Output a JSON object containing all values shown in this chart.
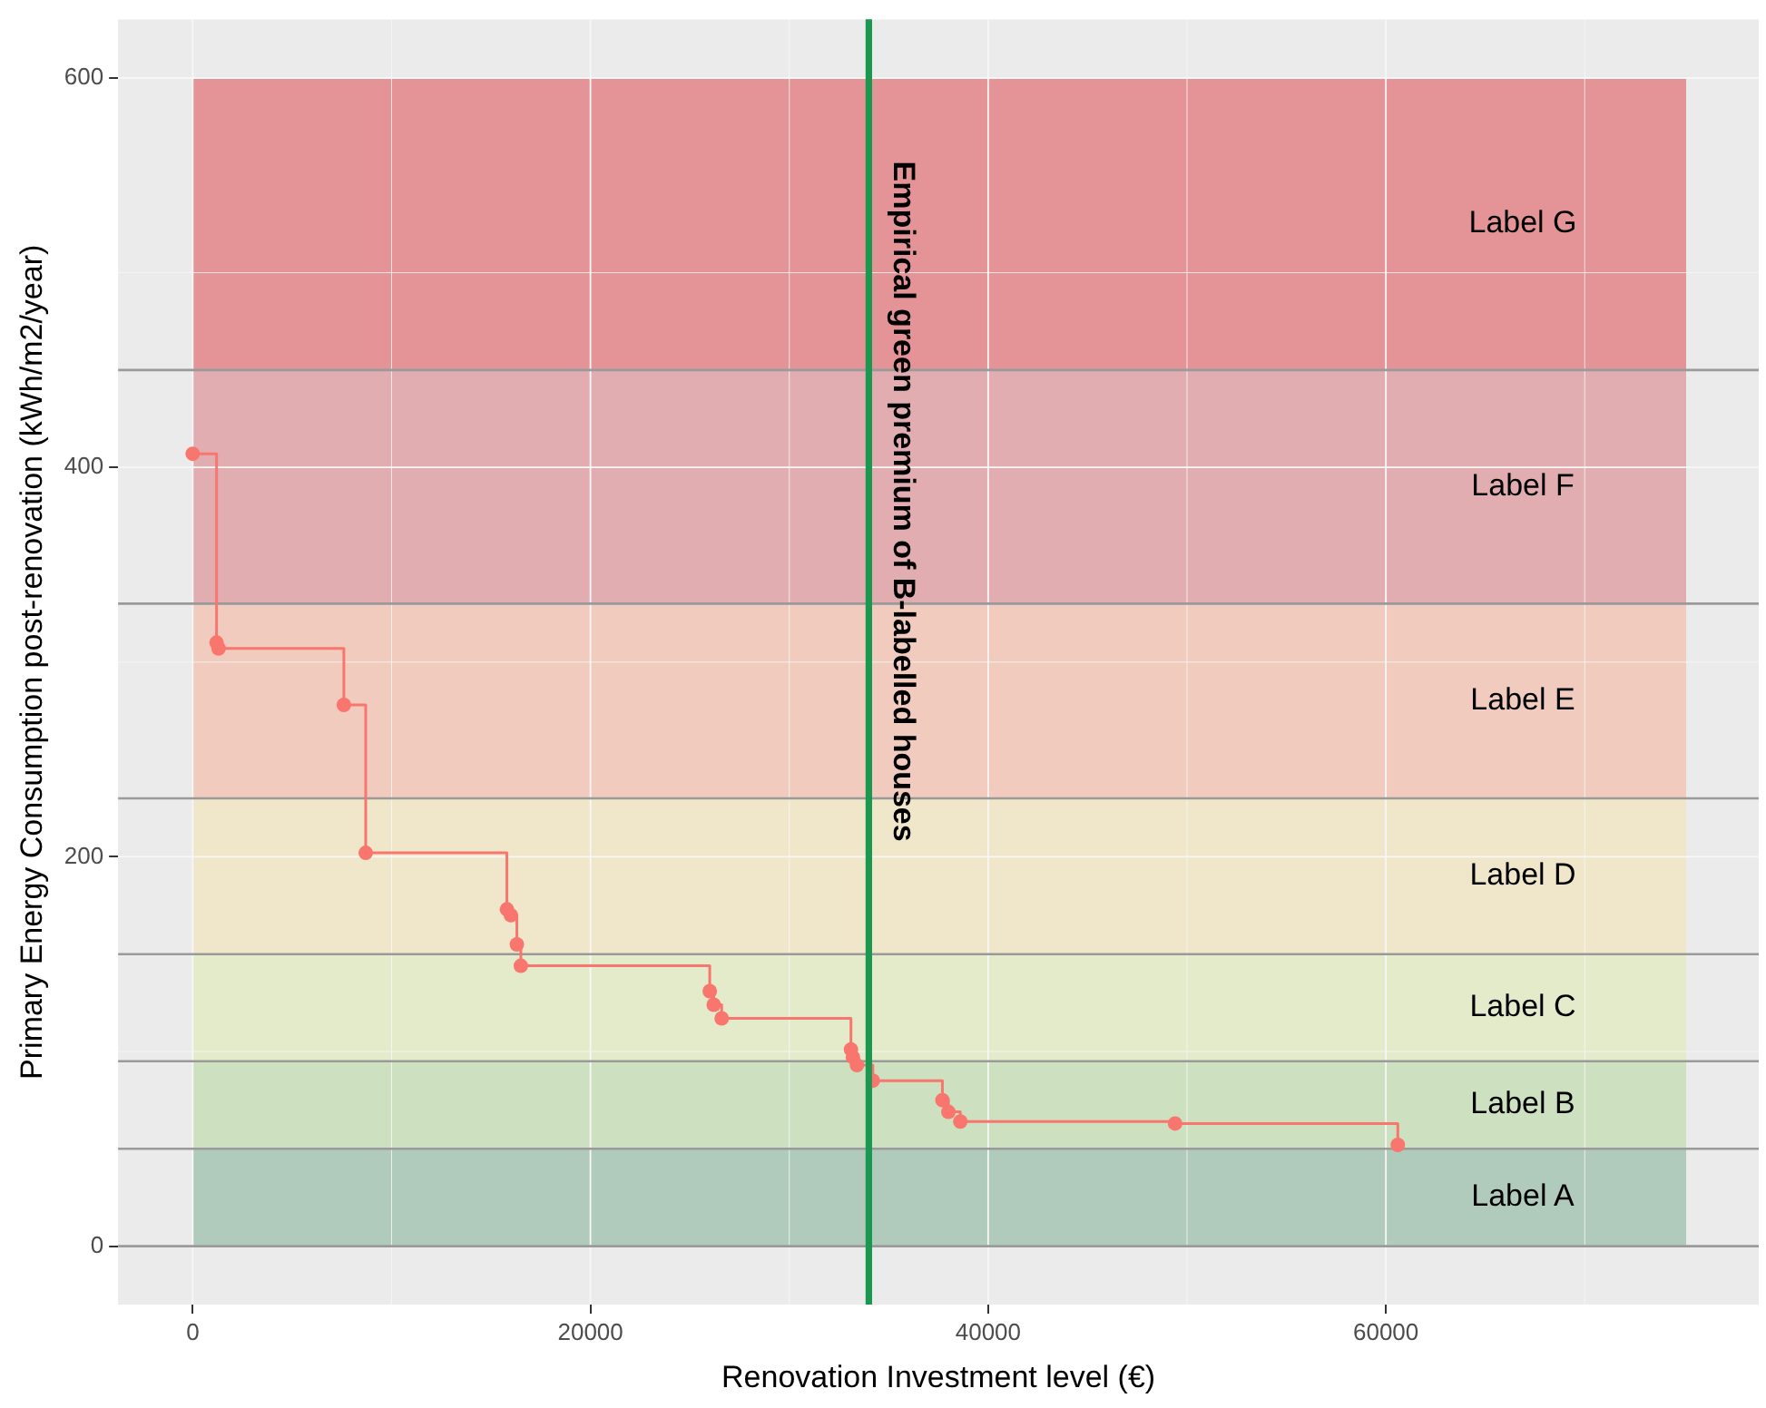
{
  "chart_data": {
    "type": "step",
    "xlabel": "Renovation Investment level (€)",
    "ylabel": "Primary Energy Consumption post-renovation (kWh/m2/year)",
    "xlim": [
      -3750,
      78750
    ],
    "ylim": [
      -30,
      630
    ],
    "xticks": [
      0,
      20000,
      40000,
      60000
    ],
    "yticks": [
      0,
      200,
      400,
      600
    ],
    "grid": true,
    "legend": false,
    "marker": "circle",
    "series": [
      {
        "type": "step",
        "color": "#f8766d",
        "x": [
          0,
          1200,
          1300,
          7600,
          8700,
          15800,
          16000,
          16300,
          16500,
          26000,
          26200,
          26600,
          33100,
          33200,
          33400,
          34200,
          37700,
          38000,
          38600,
          49400,
          60600
        ],
        "values": [
          407,
          310,
          307,
          278,
          202,
          173,
          170,
          155,
          144,
          131,
          124,
          117,
          101,
          97,
          93,
          85,
          75,
          69,
          64,
          63,
          52
        ]
      }
    ],
    "bands": [
      {
        "axis": "y",
        "from": 0,
        "to": 50,
        "label": "Label A",
        "color": "#b0cabb"
      },
      {
        "axis": "y",
        "from": 50,
        "to": 95,
        "label": "Label B",
        "color": "#cde0c0"
      },
      {
        "axis": "y",
        "from": 95,
        "to": 150,
        "label": "Label C",
        "color": "#e3ebcb"
      },
      {
        "axis": "y",
        "from": 150,
        "to": 230,
        "label": "Label D",
        "color": "#f0e6ca"
      },
      {
        "axis": "y",
        "from": 230,
        "to": 330,
        "label": "Label E",
        "color": "#f0cbbe"
      },
      {
        "axis": "y",
        "from": 330,
        "to": 450,
        "label": "Label F",
        "color": "#e2adb1"
      },
      {
        "axis": "y",
        "from": 450,
        "to": 600,
        "label": "Label G",
        "color": "#e49496"
      }
    ],
    "ref_lines": [
      {
        "axis": "y",
        "value": 50,
        "color": "#9a9a9a"
      },
      {
        "axis": "y",
        "value": 95,
        "color": "#9a9a9a"
      },
      {
        "axis": "y",
        "value": 150,
        "color": "#9a9a9a"
      },
      {
        "axis": "y",
        "value": 230,
        "color": "#9a9a9a"
      },
      {
        "axis": "y",
        "value": 330,
        "color": "#9a9a9a"
      },
      {
        "axis": "y",
        "value": 450,
        "color": "#9a9a9a"
      },
      {
        "axis": "y",
        "value": 0,
        "color": "#9a9a9a"
      },
      {
        "axis": "x",
        "value": 34000,
        "label": "Empirical green premium of B-labelled houses",
        "color": "#1a9850"
      }
    ]
  }
}
